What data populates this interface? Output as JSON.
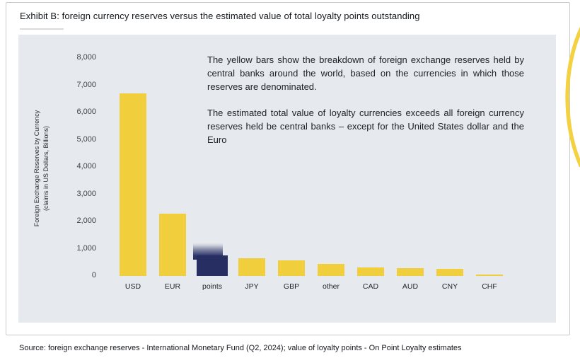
{
  "title": "Exhibit B: foreign currency reserves versus the estimated value of total loyalty points outstanding",
  "annotation": {
    "para1": "The yellow bars show the breakdown of foreign exchange reserves held by central banks around the world, based on the currencies in which those reserves are denominated.",
    "para2": "The estimated total value of loyalty currencies exceeds all foreign currency reserves held be central banks – except for the United States dollar and the Euro"
  },
  "source": "Source: foreign exchange reserves - International Monetary Fund (Q2, 2024); value of loyalty points - On Point Loyalty estimates",
  "colors": {
    "bar_yellow": "#F0CE3C",
    "points_navy": "#272F62",
    "panel_background": "#E6E9ED",
    "swoosh_yellow": "#F4D141",
    "box_border": "#C7CBCF"
  },
  "chart_data": {
    "type": "bar",
    "title": "Exhibit B: foreign currency reserves versus the estimated value of total loyalty points outstanding",
    "xlabel": "",
    "ylabel": "Foreign Exchange Reserves by Currency (claims in US Dollars, Billions)",
    "ylabel_line1": "Foreign Exchange Reserves by Currency",
    "ylabel_line2": "(claims in US Dollars, Billions)",
    "categories": [
      "USD",
      "EUR",
      "points",
      "JPY",
      "GBP",
      "other",
      "CAD",
      "AUD",
      "CNY",
      "CHF"
    ],
    "values": [
      6700,
      2280,
      1250,
      650,
      560,
      450,
      320,
      280,
      250,
      30
    ],
    "ylim": [
      0,
      8000
    ],
    "yticks": [
      "8,000",
      "7,000",
      "6,000",
      "5,000",
      "4,000",
      "3,000",
      "2,000",
      "1,000",
      "0"
    ],
    "ytick_values": [
      8000,
      7000,
      6000,
      5000,
      4000,
      3000,
      2000,
      1000,
      0
    ],
    "grid": false,
    "legend": "none",
    "special_bar": {
      "category": "points",
      "description": "navy bar with gradient fading upward indicating estimated value of loyalty points",
      "solid_top_value": 760,
      "fade_top_value": 1250
    }
  }
}
